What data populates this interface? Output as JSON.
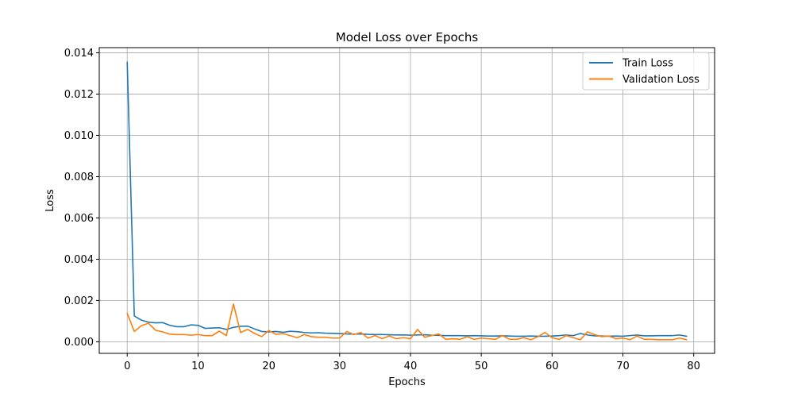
{
  "chart_data": {
    "type": "line",
    "title": "Model Loss over Epochs",
    "xlabel": "Epochs",
    "ylabel": "Loss",
    "xlim": [
      -3.95,
      82.95
    ],
    "ylim": [
      -0.00056,
      0.01425
    ],
    "xticks": [
      0,
      10,
      20,
      30,
      40,
      50,
      60,
      70,
      80
    ],
    "yticks": [
      0.0,
      0.002,
      0.004,
      0.006,
      0.008,
      0.01,
      0.012,
      0.014
    ],
    "ytick_labels": [
      "0.000",
      "0.002",
      "0.004",
      "0.006",
      "0.008",
      "0.010",
      "0.012",
      "0.014"
    ],
    "grid": true,
    "legend_position": "top-right",
    "series": [
      {
        "name": "Train Loss",
        "color": "#1f77b4",
        "values": [
          0.01355,
          0.00125,
          0.00105,
          0.00095,
          0.00092,
          0.00093,
          0.0008,
          0.00073,
          0.00073,
          0.00082,
          0.0008,
          0.00065,
          0.00067,
          0.00068,
          0.0006,
          0.0007,
          0.00075,
          0.00076,
          0.00062,
          0.0005,
          0.00048,
          0.0005,
          0.00046,
          0.00051,
          0.00049,
          0.00045,
          0.00043,
          0.00044,
          0.00042,
          0.00041,
          0.0004,
          0.00038,
          0.00037,
          0.00038,
          0.00036,
          0.00035,
          0.00035,
          0.00034,
          0.00033,
          0.00033,
          0.00032,
          0.00033,
          0.00034,
          0.00032,
          0.00031,
          0.0003,
          0.0003,
          0.0003,
          0.00029,
          0.0003,
          0.00029,
          0.00028,
          0.00028,
          0.00029,
          0.00028,
          0.00027,
          0.00027,
          0.00028,
          0.00027,
          0.00027,
          0.00028,
          0.0003,
          0.00033,
          0.0003,
          0.0004,
          0.00033,
          0.00029,
          0.00028,
          0.00027,
          0.00028,
          0.00027,
          0.0003,
          0.00033,
          0.00029,
          0.00029,
          0.0003,
          0.0003,
          0.0003,
          0.00033,
          0.00027
        ]
      },
      {
        "name": "Validation Loss",
        "color": "#ff7f0e",
        "values": [
          0.00138,
          0.0005,
          0.00078,
          0.0009,
          0.00056,
          0.00048,
          0.00037,
          0.00035,
          0.00035,
          0.00032,
          0.00035,
          0.0003,
          0.0003,
          0.00052,
          0.0003,
          0.00183,
          0.00045,
          0.0006,
          0.0004,
          0.00025,
          0.00055,
          0.00036,
          0.0004,
          0.0003,
          0.0002,
          0.00035,
          0.00025,
          0.00022,
          0.00022,
          0.00018,
          0.00018,
          0.0005,
          0.00035,
          0.00045,
          0.00018,
          0.0003,
          0.00015,
          0.00028,
          0.00015,
          0.0002,
          0.00015,
          0.0006,
          0.00022,
          0.0003,
          0.00038,
          0.00012,
          0.00015,
          0.00012,
          0.00025,
          0.00012,
          0.00018,
          0.00015,
          0.00012,
          0.0003,
          0.00012,
          0.00012,
          0.0002,
          0.0001,
          0.00025,
          0.00045,
          0.0002,
          0.00012,
          0.0003,
          0.0002,
          0.0001,
          0.00048,
          0.00035,
          0.00025,
          0.00028,
          0.00015,
          0.00018,
          0.0001,
          0.00028,
          0.00012,
          0.00012,
          0.0001,
          0.0001,
          0.0001,
          0.00018,
          0.0001
        ]
      }
    ]
  }
}
